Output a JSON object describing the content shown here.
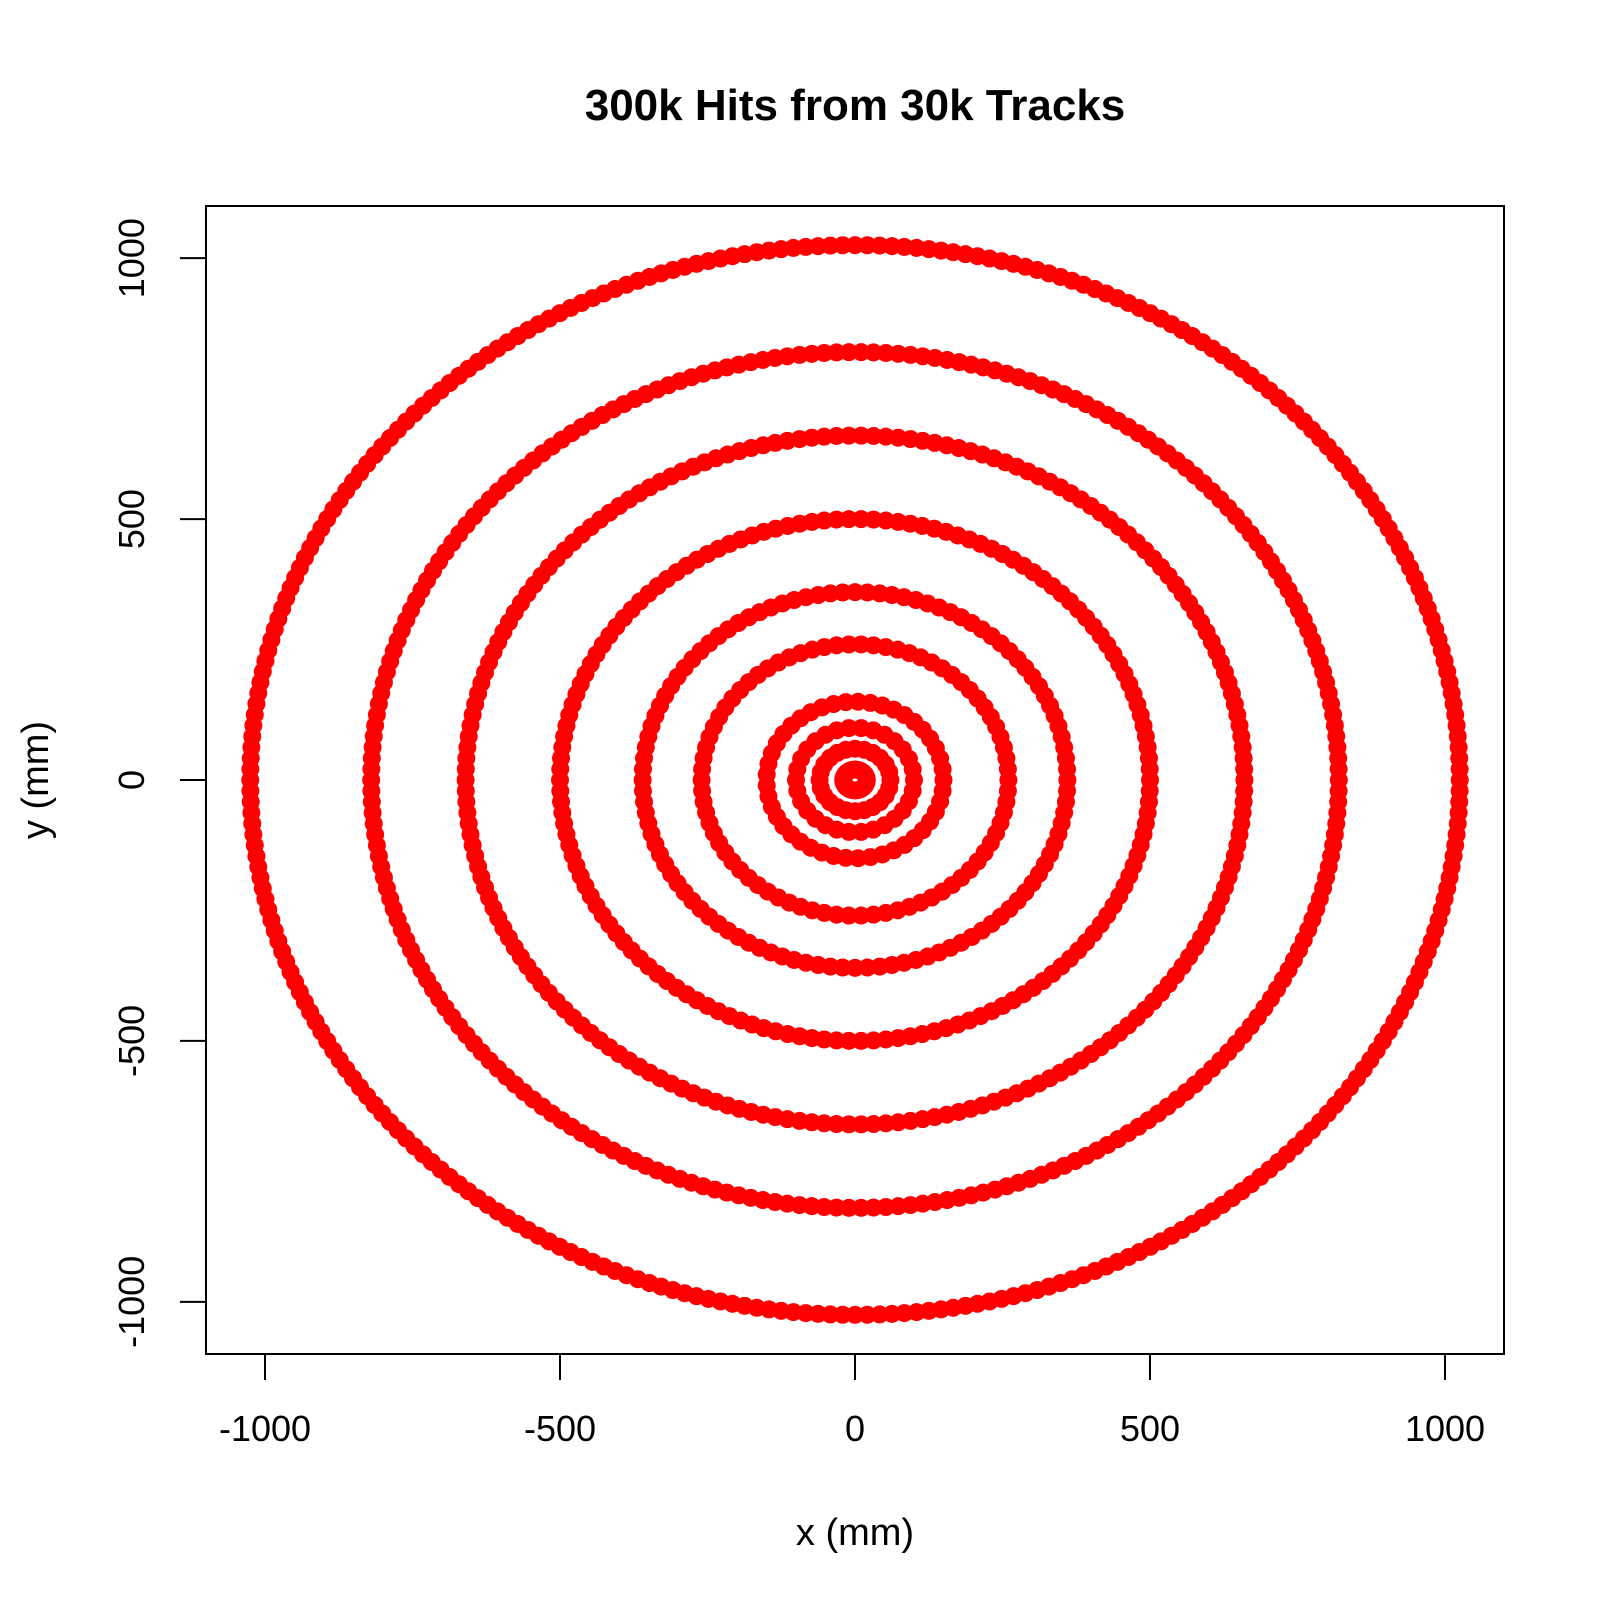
{
  "chart_data": {
    "type": "scatter",
    "title": "300k Hits from 30k Tracks",
    "xlabel": "x (mm)",
    "ylabel": "y (mm)",
    "xlim": [
      -1100,
      1100
    ],
    "ylim": [
      -1100,
      1100
    ],
    "x_ticks": [
      -1000,
      -500,
      0,
      500,
      1000
    ],
    "y_ticks": [
      -1000,
      -500,
      0,
      500,
      1000
    ],
    "x_tick_labels": [
      "-1000",
      "-500",
      "0",
      "500",
      "1000"
    ],
    "y_tick_labels": [
      "-1000",
      "-500",
      "0",
      "500",
      "1000"
    ],
    "grid": false,
    "legend": "none",
    "point_color": "#ff0000",
    "rings": [
      {
        "radius": 20
      },
      {
        "radius": 60
      },
      {
        "radius": 100
      },
      {
        "radius": 150
      },
      {
        "radius": 260
      },
      {
        "radius": 360
      },
      {
        "radius": 500
      },
      {
        "radius": 660
      },
      {
        "radius": 820
      },
      {
        "radius": 1025
      }
    ]
  }
}
